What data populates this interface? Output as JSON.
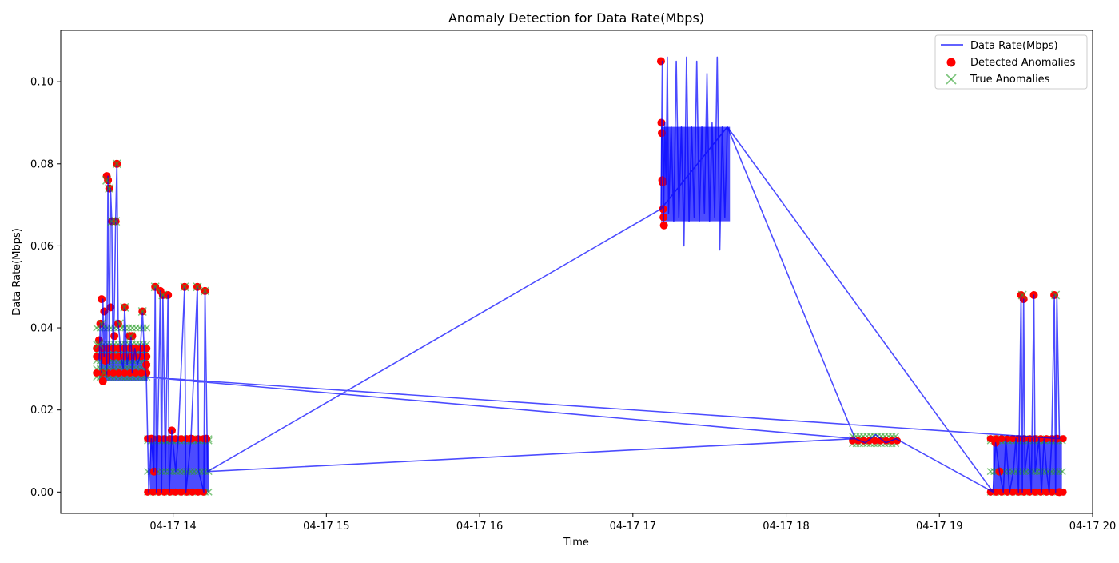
{
  "chart_data": {
    "type": "line",
    "title": "Anomaly Detection for Data Rate(Mbps)",
    "xlabel": "Time",
    "ylabel": "Data Rate(Mbps)",
    "x_is_time": true,
    "xlim": [
      "2025-04-17T13:16",
      "2025-04-17T20:00"
    ],
    "ylim": [
      -0.0052,
      0.1125
    ],
    "x_ticks": [
      {
        "t": "2025-04-17T14:00",
        "label": "04-17 14"
      },
      {
        "t": "2025-04-17T15:00",
        "label": "04-17 15"
      },
      {
        "t": "2025-04-17T16:00",
        "label": "04-17 16"
      },
      {
        "t": "2025-04-17T17:00",
        "label": "04-17 17"
      },
      {
        "t": "2025-04-17T18:00",
        "label": "04-17 18"
      },
      {
        "t": "2025-04-17T19:00",
        "label": "04-17 19"
      },
      {
        "t": "2025-04-17T20:00",
        "label": "04-17 20"
      }
    ],
    "y_ticks": [
      {
        "v": 0.0,
        "label": "0.00"
      },
      {
        "v": 0.02,
        "label": "0.02"
      },
      {
        "v": 0.04,
        "label": "0.04"
      },
      {
        "v": 0.06,
        "label": "0.06"
      },
      {
        "v": 0.08,
        "label": "0.08"
      },
      {
        "v": 0.1,
        "label": "0.10"
      }
    ],
    "grid": false,
    "legend_position": "top-right",
    "series": [
      {
        "name": "Data Rate(Mbps)",
        "kind": "line",
        "color": "#0000ff",
        "points": [
          [
            "2025-04-17T13:31:00",
            0.032
          ],
          [
            "2025-04-17T13:31:30",
            0.041
          ],
          [
            "2025-04-17T13:32:00",
            0.029
          ],
          [
            "2025-04-17T13:32:30",
            0.047
          ],
          [
            "2025-04-17T13:33:00",
            0.033
          ],
          [
            "2025-04-17T13:33:30",
            0.044
          ],
          [
            "2025-04-17T13:34:00",
            0.028
          ],
          [
            "2025-04-17T13:34:30",
            0.077
          ],
          [
            "2025-04-17T13:35:00",
            0.031
          ],
          [
            "2025-04-17T13:35:30",
            0.074
          ],
          [
            "2025-04-17T13:36:00",
            0.066
          ],
          [
            "2025-04-17T13:36:30",
            0.03
          ],
          [
            "2025-04-17T13:37:00",
            0.045
          ],
          [
            "2025-04-17T13:37:30",
            0.066
          ],
          [
            "2025-04-17T13:38:00",
            0.08
          ],
          [
            "2025-04-17T13:38:30",
            0.041
          ],
          [
            "2025-04-17T13:39:00",
            0.038
          ],
          [
            "2025-04-17T13:39:30",
            0.033
          ],
          [
            "2025-04-17T13:40:30",
            0.03
          ],
          [
            "2025-04-17T13:41:00",
            0.045
          ],
          [
            "2025-04-17T13:42:00",
            0.031
          ],
          [
            "2025-04-17T13:43:00",
            0.035
          ],
          [
            "2025-04-17T13:43:30",
            0.038
          ],
          [
            "2025-04-17T13:44:00",
            0.029
          ],
          [
            "2025-04-17T13:45:00",
            0.035
          ],
          [
            "2025-04-17T13:46:00",
            0.031
          ],
          [
            "2025-04-17T13:47:00",
            0.033
          ],
          [
            "2025-04-17T13:48:00",
            0.044
          ],
          [
            "2025-04-17T13:49:00",
            0.03
          ],
          [
            "2025-04-17T13:49:30",
            0.028
          ],
          [
            "2025-04-17T13:50:30",
            0.0
          ],
          [
            "2025-04-17T13:51:30",
            0.013
          ],
          [
            "2025-04-17T13:52:30",
            0.005
          ],
          [
            "2025-04-17T13:53:00",
            0.05
          ],
          [
            "2025-04-17T13:53:30",
            0.0
          ],
          [
            "2025-04-17T13:54:00",
            0.014
          ],
          [
            "2025-04-17T13:55:00",
            0.049
          ],
          [
            "2025-04-17T13:55:30",
            0.0
          ],
          [
            "2025-04-17T13:56:00",
            0.048
          ],
          [
            "2025-04-17T13:57:00",
            0.005
          ],
          [
            "2025-04-17T13:58:00",
            0.048
          ],
          [
            "2025-04-17T13:58:30",
            0.0
          ],
          [
            "2025-04-17T13:59:30",
            0.015
          ],
          [
            "2025-04-17T14:01:00",
            0.005
          ],
          [
            "2025-04-17T14:02:00",
            0.013
          ],
          [
            "2025-04-17T14:04:30",
            0.05
          ],
          [
            "2025-04-17T14:05:00",
            0.0
          ],
          [
            "2025-04-17T14:07:00",
            0.013
          ],
          [
            "2025-04-17T14:09:30",
            0.05
          ],
          [
            "2025-04-17T14:10:00",
            0.005
          ],
          [
            "2025-04-17T14:12:00",
            0.0
          ],
          [
            "2025-04-17T14:12:30",
            0.049
          ],
          [
            "2025-04-17T14:13:30",
            0.005
          ],
          [
            "2025-04-17T17:11:00",
            0.069
          ],
          [
            "2025-04-17T17:11:30",
            0.105
          ],
          [
            "2025-04-17T17:12:00",
            0.066
          ],
          [
            "2025-04-17T17:12:30",
            0.09
          ],
          [
            "2025-04-17T17:13:00",
            0.075
          ],
          [
            "2025-04-17T17:13:30",
            0.106
          ],
          [
            "2025-04-17T17:14:00",
            0.068
          ],
          [
            "2025-04-17T17:15:00",
            0.089
          ],
          [
            "2025-04-17T17:16:00",
            0.066
          ],
          [
            "2025-04-17T17:17:00",
            0.105
          ],
          [
            "2025-04-17T17:18:00",
            0.067
          ],
          [
            "2025-04-17T17:19:00",
            0.089
          ],
          [
            "2025-04-17T17:20:00",
            0.06
          ],
          [
            "2025-04-17T17:21:00",
            0.106
          ],
          [
            "2025-04-17T17:22:00",
            0.066
          ],
          [
            "2025-04-17T17:23:00",
            0.089
          ],
          [
            "2025-04-17T17:24:00",
            0.067
          ],
          [
            "2025-04-17T17:25:00",
            0.105
          ],
          [
            "2025-04-17T17:26:00",
            0.066
          ],
          [
            "2025-04-17T17:27:00",
            0.089
          ],
          [
            "2025-04-17T17:28:00",
            0.068
          ],
          [
            "2025-04-17T17:29:00",
            0.102
          ],
          [
            "2025-04-17T17:30:00",
            0.066
          ],
          [
            "2025-04-17T17:31:00",
            0.09
          ],
          [
            "2025-04-17T17:32:00",
            0.067
          ],
          [
            "2025-04-17T17:33:00",
            0.106
          ],
          [
            "2025-04-17T17:34:00",
            0.059
          ],
          [
            "2025-04-17T17:35:00",
            0.089
          ],
          [
            "2025-04-17T17:36:00",
            0.067
          ],
          [
            "2025-04-17T17:37:00",
            0.089
          ],
          [
            "2025-04-17T18:27:00",
            0.013
          ],
          [
            "2025-04-17T18:31:00",
            0.012
          ],
          [
            "2025-04-17T18:35:00",
            0.014
          ],
          [
            "2025-04-17T18:39:00",
            0.012
          ],
          [
            "2025-04-17T18:43:00",
            0.013
          ],
          [
            "2025-04-17T19:21:00",
            0.0
          ],
          [
            "2025-04-17T19:22:00",
            0.012
          ],
          [
            "2025-04-17T19:23:30",
            0.005
          ],
          [
            "2025-04-17T19:25:00",
            0.0
          ],
          [
            "2025-04-17T19:26:00",
            0.013
          ],
          [
            "2025-04-17T19:27:30",
            0.0
          ],
          [
            "2025-04-17T19:29:00",
            0.005
          ],
          [
            "2025-04-17T19:30:00",
            0.013
          ],
          [
            "2025-04-17T19:31:00",
            0.0
          ],
          [
            "2025-04-17T19:32:00",
            0.048
          ],
          [
            "2025-04-17T19:32:30",
            0.0
          ],
          [
            "2025-04-17T19:33:00",
            0.047
          ],
          [
            "2025-04-17T19:33:30",
            0.005
          ],
          [
            "2025-04-17T19:35:00",
            0.013
          ],
          [
            "2025-04-17T19:36:00",
            0.0
          ],
          [
            "2025-04-17T19:37:00",
            0.048
          ],
          [
            "2025-04-17T19:37:30",
            0.005
          ],
          [
            "2025-04-17T19:39:00",
            0.013
          ],
          [
            "2025-04-17T19:40:00",
            0.0
          ],
          [
            "2025-04-17T19:41:00",
            0.013
          ],
          [
            "2025-04-17T19:42:00",
            0.005
          ],
          [
            "2025-04-17T19:43:00",
            0.0
          ],
          [
            "2025-04-17T19:44:00",
            0.013
          ],
          [
            "2025-04-17T19:45:00",
            0.048
          ],
          [
            "2025-04-17T19:45:30",
            0.0
          ],
          [
            "2025-04-17T19:46:00",
            0.048
          ],
          [
            "2025-04-17T19:47:00",
            0.013
          ],
          [
            "2025-04-17T13:49:30",
            0.028
          ],
          [
            "2025-04-17T18:27:00",
            0.013
          ],
          [
            "2025-04-17T14:13:30",
            0.005
          ],
          [
            "2025-04-17T17:11:00",
            0.069
          ],
          [
            "2025-04-17T17:37:00",
            0.089
          ],
          [
            "2025-04-17T19:21:00",
            0.0
          ]
        ]
      },
      {
        "name": "Detected Anomalies",
        "kind": "scatter",
        "marker": "circle",
        "color": "#ff0000",
        "points": [
          [
            "2025-04-17T13:31:00",
            0.037
          ],
          [
            "2025-04-17T13:31:30",
            0.041
          ],
          [
            "2025-04-17T13:32:00",
            0.047
          ],
          [
            "2025-04-17T13:32:30",
            0.027
          ],
          [
            "2025-04-17T13:33:00",
            0.044
          ],
          [
            "2025-04-17T13:33:30",
            0.032
          ],
          [
            "2025-04-17T13:34:00",
            0.077
          ],
          [
            "2025-04-17T13:34:30",
            0.076
          ],
          [
            "2025-04-17T13:35:00",
            0.074
          ],
          [
            "2025-04-17T13:35:30",
            0.045
          ],
          [
            "2025-04-17T13:36:00",
            0.066
          ],
          [
            "2025-04-17T13:37:00",
            0.038
          ],
          [
            "2025-04-17T13:37:30",
            0.066
          ],
          [
            "2025-04-17T13:38:00",
            0.08
          ],
          [
            "2025-04-17T13:38:30",
            0.041
          ],
          [
            "2025-04-17T13:41:00",
            0.045
          ],
          [
            "2025-04-17T13:43:00",
            0.038
          ],
          [
            "2025-04-17T13:44:00",
            0.038
          ],
          [
            "2025-04-17T13:45:00",
            0.035
          ],
          [
            "2025-04-17T13:48:00",
            0.044
          ],
          [
            "2025-04-17T13:49:30",
            0.031
          ],
          [
            "2025-04-17T13:53:00",
            0.05
          ],
          [
            "2025-04-17T13:55:00",
            0.049
          ],
          [
            "2025-04-17T13:56:00",
            0.048
          ],
          [
            "2025-04-17T13:58:00",
            0.048
          ],
          [
            "2025-04-17T13:59:30",
            0.015
          ],
          [
            "2025-04-17T14:04:30",
            0.05
          ],
          [
            "2025-04-17T14:07:00",
            0.013
          ],
          [
            "2025-04-17T14:09:30",
            0.05
          ],
          [
            "2025-04-17T14:12:30",
            0.049
          ],
          [
            "2025-04-17T14:13:00",
            0.013
          ],
          [
            "2025-04-17T13:51:30",
            0.013
          ],
          [
            "2025-04-17T13:52:30",
            0.005
          ],
          [
            "2025-04-17T17:11:00",
            0.105
          ],
          [
            "2025-04-17T17:11:10",
            0.09
          ],
          [
            "2025-04-17T17:11:20",
            0.0875
          ],
          [
            "2025-04-17T17:11:30",
            0.076
          ],
          [
            "2025-04-17T17:11:40",
            0.0755
          ],
          [
            "2025-04-17T17:11:50",
            0.069
          ],
          [
            "2025-04-17T17:12:00",
            0.067
          ],
          [
            "2025-04-17T17:12:10",
            0.065
          ],
          [
            "2025-04-17T19:32:00",
            0.048
          ],
          [
            "2025-04-17T19:33:00",
            0.047
          ],
          [
            "2025-04-17T19:37:00",
            0.048
          ],
          [
            "2025-04-17T19:45:00",
            0.048
          ],
          [
            "2025-04-17T19:46:00",
            0.013
          ],
          [
            "2025-04-17T19:22:00",
            0.012
          ],
          [
            "2025-04-17T19:23:30",
            0.005
          ],
          [
            "2025-04-17T19:47:00",
            0.0
          ]
        ]
      },
      {
        "name": "True Anomalies",
        "kind": "scatter",
        "marker": "x",
        "color": "#2ca02c",
        "points": [
          [
            "2025-04-17T13:31:00",
            0.036
          ],
          [
            "2025-04-17T13:32:00",
            0.041
          ],
          [
            "2025-04-17T13:33:00",
            0.029
          ],
          [
            "2025-04-17T13:34:00",
            0.076
          ],
          [
            "2025-04-17T13:35:00",
            0.074
          ],
          [
            "2025-04-17T13:36:00",
            0.066
          ],
          [
            "2025-04-17T13:37:30",
            0.066
          ],
          [
            "2025-04-17T13:38:00",
            0.08
          ],
          [
            "2025-04-17T13:39:00",
            0.041
          ],
          [
            "2025-04-17T13:41:00",
            0.045
          ],
          [
            "2025-04-17T13:43:30",
            0.038
          ],
          [
            "2025-04-17T13:48:00",
            0.044
          ],
          [
            "2025-04-17T13:53:00",
            0.05
          ],
          [
            "2025-04-17T13:56:00",
            0.048
          ],
          [
            "2025-04-17T14:04:30",
            0.05
          ],
          [
            "2025-04-17T14:09:30",
            0.05
          ],
          [
            "2025-04-17T14:12:30",
            0.049
          ],
          [
            "2025-04-17T19:32:30",
            0.048
          ],
          [
            "2025-04-17T19:45:30",
            0.048
          ]
        ]
      }
    ],
    "bands": [
      {
        "series": "Data Rate(Mbps)",
        "x0": "2025-04-17T13:31",
        "x1": "2025-04-17T13:50",
        "y0": 0.027,
        "y1": 0.036
      },
      {
        "series": "Data Rate(Mbps)",
        "x0": "2025-04-17T13:51",
        "x1": "2025-04-17T14:14",
        "y0": 0.0,
        "y1": 0.013
      },
      {
        "series": "Data Rate(Mbps)",
        "x0": "2025-04-17T17:11",
        "x1": "2025-04-17T17:38",
        "y0": 0.066,
        "y1": 0.089
      },
      {
        "series": "Data Rate(Mbps)",
        "x0": "2025-04-17T19:21",
        "x1": "2025-04-17T19:48",
        "y0": 0.0,
        "y1": 0.013
      }
    ],
    "dense_markers": [
      {
        "series": "True Anomalies",
        "x0": "2025-04-17T13:30",
        "x1": "2025-04-17T13:51",
        "levels": [
          0.028,
          0.03,
          0.032,
          0.034,
          0.036,
          0.04
        ]
      },
      {
        "series": "True Anomalies",
        "x0": "2025-04-17T13:50",
        "x1": "2025-04-17T14:14",
        "levels": [
          0.0,
          0.005,
          0.0125,
          0.013
        ]
      },
      {
        "series": "True Anomalies",
        "x0": "2025-04-17T18:26",
        "x1": "2025-04-17T18:44",
        "levels": [
          0.0118,
          0.0128,
          0.0136
        ]
      },
      {
        "series": "True Anomalies",
        "x0": "2025-04-17T19:20",
        "x1": "2025-04-17T19:49",
        "levels": [
          0.0,
          0.005,
          0.0125,
          0.013
        ]
      },
      {
        "series": "Detected Anomalies",
        "x0": "2025-04-17T13:30",
        "x1": "2025-04-17T13:51",
        "levels": [
          0.029,
          0.033,
          0.035
        ]
      },
      {
        "series": "Detected Anomalies",
        "x0": "2025-04-17T13:50",
        "x1": "2025-04-17T14:14",
        "levels": [
          0.0,
          0.013
        ]
      },
      {
        "series": "Detected Anomalies",
        "x0": "2025-04-17T18:26",
        "x1": "2025-04-17T18:44",
        "levels": [
          0.0125
        ]
      },
      {
        "series": "Detected Anomalies",
        "x0": "2025-04-17T19:20",
        "x1": "2025-04-17T19:49",
        "levels": [
          0.0,
          0.013
        ]
      }
    ]
  }
}
